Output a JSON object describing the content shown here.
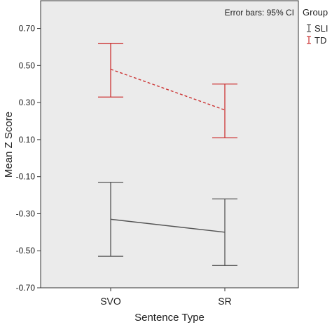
{
  "chart_data": {
    "type": "line",
    "title": "",
    "xlabel": "Sentence Type",
    "ylabel": "Mean Z Score",
    "categories": [
      "SVO",
      "SR"
    ],
    "ylim": [
      -0.7,
      0.85
    ],
    "yticks": [
      0.7,
      0.5,
      0.3,
      0.1,
      -0.1,
      -0.3,
      -0.5,
      -0.7
    ],
    "ytick_labels": [
      "0.70",
      "0.50",
      "0.30",
      "0.10",
      "-0.10",
      "-0.30",
      "-0.50",
      "-0.70"
    ],
    "annotation": "Error bars: 95% CI",
    "legend": {
      "title": "Group",
      "position": "right",
      "entries": [
        {
          "label": "SLI",
          "color": "#555555"
        },
        {
          "label": "TD",
          "color": "#cc3333"
        }
      ]
    },
    "series": [
      {
        "name": "SLI",
        "color": "#555555",
        "line_style": "solid",
        "values": [
          -0.33,
          -0.4
        ],
        "ci_lower": [
          -0.53,
          -0.58
        ],
        "ci_upper": [
          -0.13,
          -0.22
        ]
      },
      {
        "name": "TD",
        "color": "#cc3333",
        "line_style": "dashed",
        "values": [
          0.48,
          0.26
        ],
        "ci_lower": [
          0.33,
          0.11
        ],
        "ci_upper": [
          0.62,
          0.4
        ]
      }
    ],
    "plot_background": "#ebebeb",
    "grid": false
  }
}
